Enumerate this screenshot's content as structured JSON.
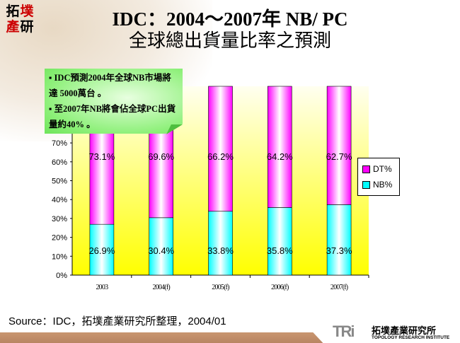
{
  "header": {
    "title_line1": "IDC：2004～2007年 NB/ PC",
    "title_line2": "全球總出貨量比率之預測",
    "logo_text": "拓墣產研"
  },
  "callout": {
    "bullet1": "▪ IDC預測2004年全球NB市場將達 5000萬台 。",
    "bullet2": "▪ 至2007年NB將會佔全球PC出貨量約40% 。"
  },
  "source": "Source：IDC，拓墣產業研究所整理，2004/01",
  "footer": {
    "logo_mark": "TRi",
    "logo_zh": "拓墣產業研究所",
    "logo_en": "TOPOLOGY RESEARCH INSTITUTE"
  },
  "chart_data": {
    "type": "bar",
    "stacked": true,
    "categories": [
      "2003",
      "2004(f)",
      "2005(f)",
      "2006(f)",
      "2007(f)"
    ],
    "series": [
      {
        "name": "NB%",
        "values": [
          26.9,
          30.4,
          33.8,
          35.8,
          37.3
        ],
        "labels": [
          "26.9%",
          "30.4%",
          "33.8%",
          "35.8%",
          "37.3%"
        ],
        "color": "#00ffff"
      },
      {
        "name": "DT%",
        "values": [
          73.1,
          69.6,
          66.2,
          64.2,
          62.7
        ],
        "labels": [
          "73.1%",
          "69.6%",
          "66.2%",
          "64.2%",
          "62.7%"
        ],
        "color": "#ff00ff"
      }
    ],
    "yticks": [
      "0%",
      "10%",
      "20%",
      "30%",
      "40%",
      "50%",
      "60%",
      "70%"
    ],
    "ylim": [
      0,
      100
    ],
    "legend": "right",
    "plot_background": "#ffff00"
  }
}
